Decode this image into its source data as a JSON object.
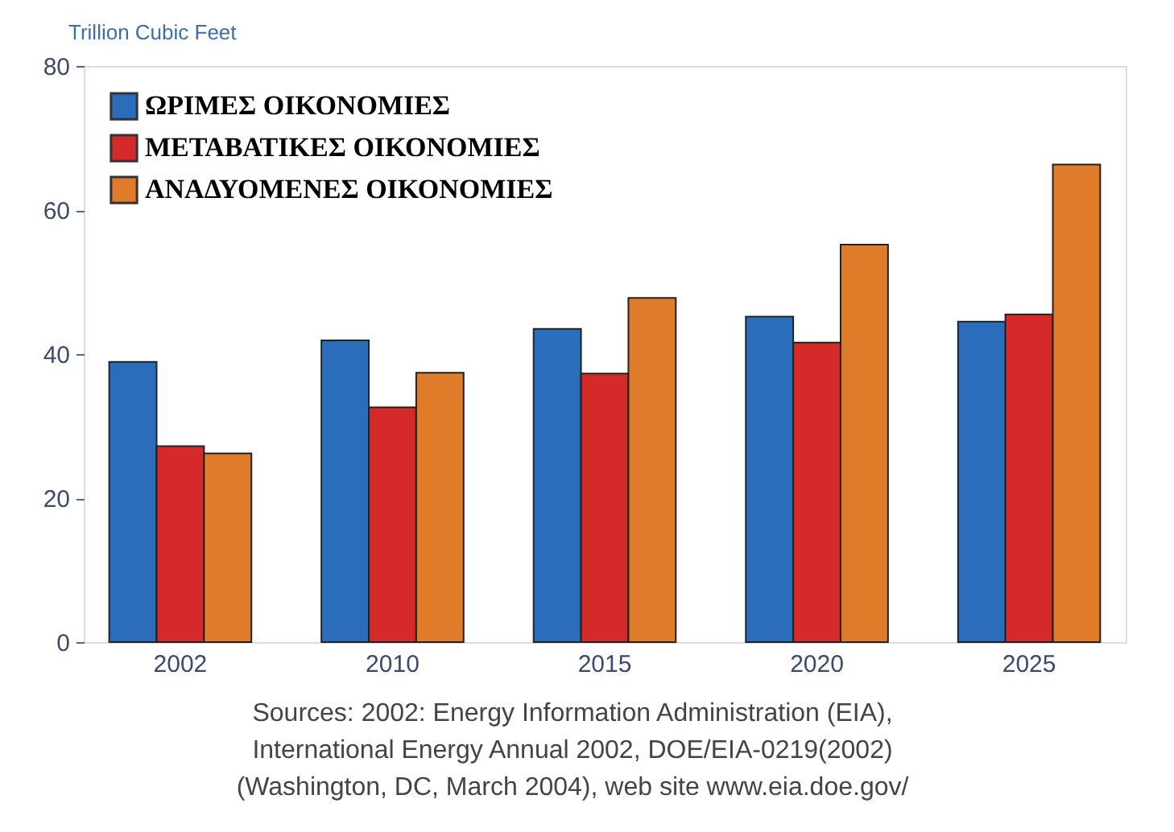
{
  "chart_data": {
    "type": "bar",
    "ylabel": "Trillion Cubic Feet",
    "categories": [
      "2002",
      "2010",
      "2015",
      "2020",
      "2025"
    ],
    "series": [
      {
        "name": "ΩΡΙΜΕΣ ΟΙΚΟΝΟΜΙΕΣ",
        "color": "#2a6ebb",
        "values": [
          38.9,
          41.9,
          43.5,
          45.2,
          44.5
        ]
      },
      {
        "name": "ΜΕΤΑΒΑΤΙΚΕΣ ΟΙΚΟΝΟΜΙΕΣ",
        "color": "#d42a2a",
        "values": [
          27.2,
          32.6,
          37.3,
          41.6,
          45.5
        ]
      },
      {
        "name": "ΑΝΑΔΥΟΜΕΝΕΣ ΟΙΚΟΝΟΜΙΕΣ",
        "color": "#e07b2a",
        "values": [
          26.2,
          37.4,
          47.8,
          55.2,
          66.3
        ]
      }
    ],
    "ylim": [
      0,
      80
    ],
    "yticks": [
      0,
      20,
      40,
      60,
      80
    ],
    "grid": false,
    "legend": "top left",
    "annotations": [
      "Sources: 2002: Energy Information Administration (EIA),",
      "International Energy Annual 2002, DOE/EIA-0219(2002)",
      "(Washington, DC, March 2004), web site www.eia.doe.gov/"
    ]
  }
}
